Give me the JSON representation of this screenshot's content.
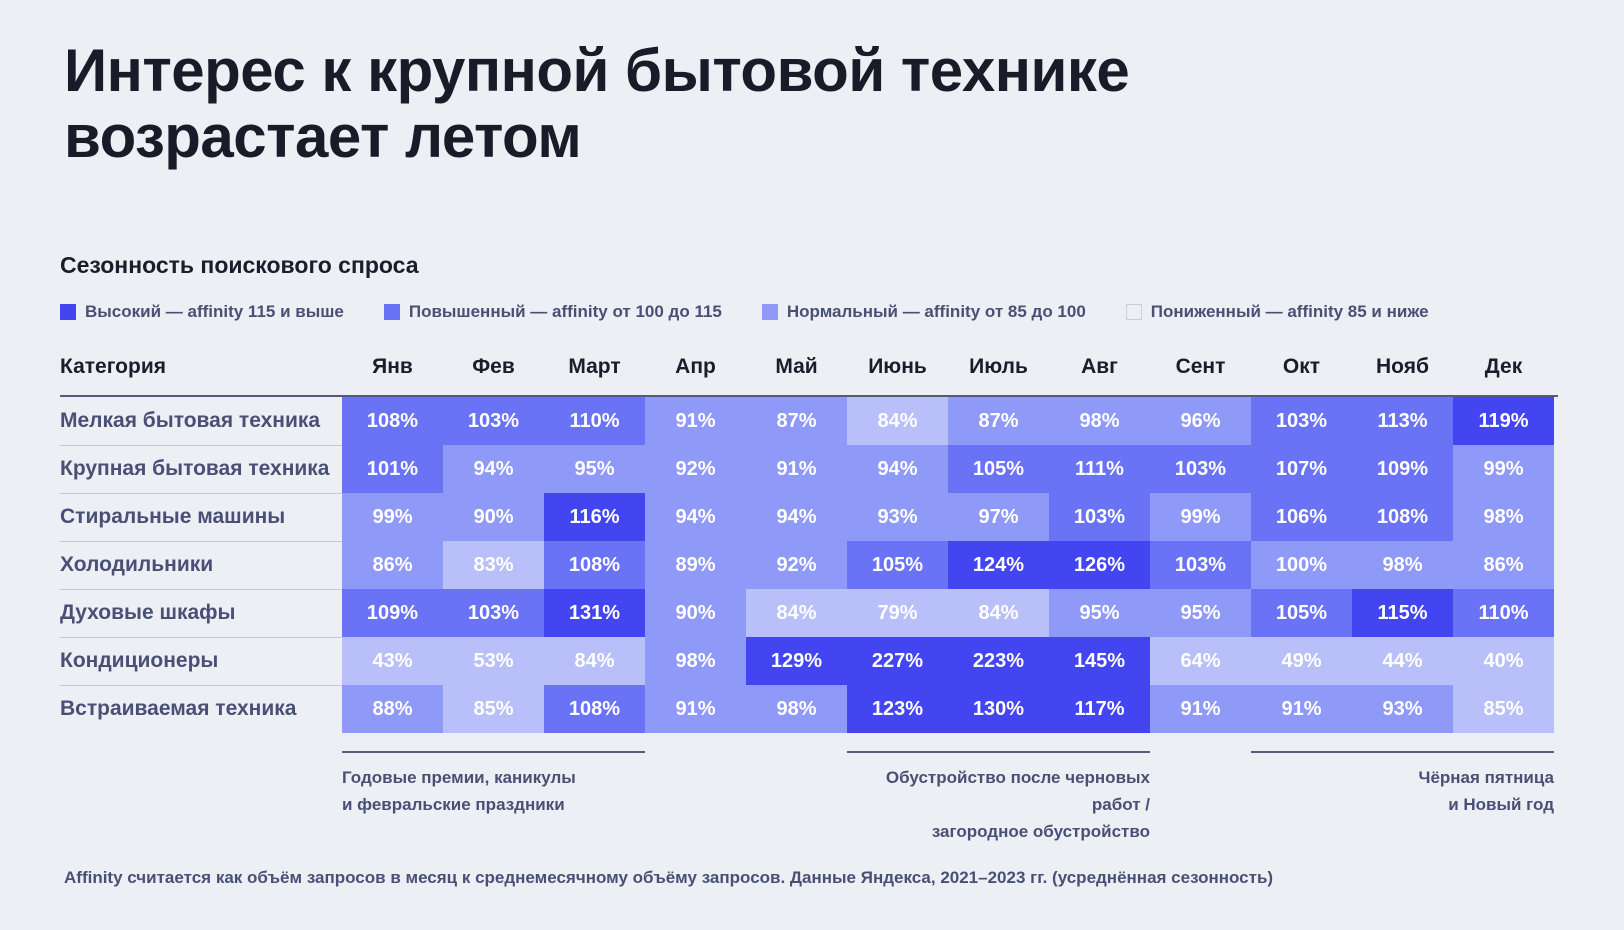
{
  "title_lines": [
    "Интерес к крупной бытовой технике",
    "возрастает летом"
  ],
  "subtitle": "Сезонность поискового спроса",
  "legend": [
    {
      "label": "Высокий — affinity 115 и выше",
      "color": "#4345f0"
    },
    {
      "label": "Повышенный — affinity от 100 до 115",
      "color": "#6a73f5"
    },
    {
      "label": "Нормальный — affinity от 85 до 100",
      "color": "#8f99f7"
    },
    {
      "label": "Пониженный — affinity 85 и ниже",
      "color": "#b9c0f9"
    }
  ],
  "chart_data": {
    "type": "heatmap",
    "row_header": "Категория",
    "columns": [
      "Янв",
      "Фев",
      "Март",
      "Апр",
      "Май",
      "Июнь",
      "Июль",
      "Авг",
      "Сент",
      "Окт",
      "Нояб",
      "Дек"
    ],
    "rows": [
      {
        "name": "Мелкая бытовая техника",
        "values": [
          108,
          103,
          110,
          91,
          87,
          84,
          87,
          98,
          96,
          103,
          113,
          119
        ]
      },
      {
        "name": "Крупная бытовая техника",
        "values": [
          101,
          94,
          95,
          92,
          91,
          94,
          105,
          111,
          103,
          107,
          109,
          99
        ]
      },
      {
        "name": "Стиральные машины",
        "values": [
          99,
          90,
          116,
          94,
          94,
          93,
          97,
          103,
          99,
          106,
          108,
          98
        ]
      },
      {
        "name": "Холодильники",
        "values": [
          86,
          83,
          108,
          89,
          92,
          105,
          124,
          126,
          103,
          100,
          98,
          86
        ]
      },
      {
        "name": "Духовые шкафы",
        "values": [
          109,
          103,
          131,
          90,
          84,
          79,
          84,
          95,
          95,
          105,
          115,
          110
        ]
      },
      {
        "name": "Кондиционеры",
        "values": [
          43,
          53,
          84,
          98,
          129,
          227,
          223,
          145,
          64,
          49,
          44,
          40
        ]
      },
      {
        "name": "Встраиваемая техника",
        "values": [
          88,
          85,
          108,
          91,
          98,
          123,
          130,
          117,
          91,
          91,
          93,
          85
        ]
      }
    ],
    "value_suffix": "%",
    "thresholds": {
      "high": 115,
      "elevated": 100,
      "normal": 85
    },
    "annotations": [
      {
        "lines": [
          "Годовые премии, каникулы",
          "и февральские праздники"
        ],
        "columns": [
          "Янв",
          "Март"
        ]
      },
      {
        "lines": [
          "Обустройство после черновых работ /",
          "загородное обустройство"
        ],
        "columns": [
          "Июнь",
          "Авг"
        ]
      },
      {
        "lines": [
          "Чёрная пятница",
          "и Новый год"
        ],
        "columns": [
          "Окт",
          "Дек"
        ]
      }
    ]
  },
  "footnote": "Affinity считается как объём запросов в месяц к среднемесячному объёму запросов. Данные Яндекса, 2021–2023 гг. (усреднённая сезонность)"
}
